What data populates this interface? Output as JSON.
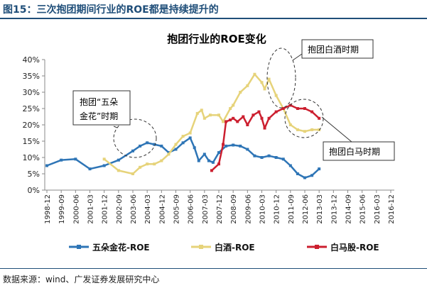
{
  "figure_title": "图15：三次抱团期间行业的ROE都是持续提升的",
  "source_note": "数据来源：wind、广发证券发展研究中心",
  "chart_data": {
    "type": "line",
    "title": "抱团行业的ROE变化",
    "ylim": [
      0,
      40
    ],
    "yticks": [
      "0%",
      "5%",
      "10%",
      "15%",
      "20%",
      "25%",
      "30%",
      "35%",
      "40%"
    ],
    "categories": [
      "1998-12",
      "1999-09",
      "2000-06",
      "2001-03",
      "2001-12",
      "2002-09",
      "2003-06",
      "2004-03",
      "2004-12",
      "2005-09",
      "2006-06",
      "2007-03",
      "2007-12",
      "2008-09",
      "2009-06",
      "2010-03",
      "2010-12",
      "2011-09",
      "2012-06",
      "2013-03",
      "2013-12",
      "2014-09",
      "2015-06",
      "2016-03",
      "2016-12"
    ],
    "grid": false,
    "legend_position": "bottom",
    "series": [
      {
        "name": "五朵金花-ROE",
        "color": "#2e75b6",
        "points": [
          [
            0,
            7.5
          ],
          [
            1,
            9.2
          ],
          [
            2,
            9.5
          ],
          [
            3,
            6.5
          ],
          [
            4,
            7.5
          ],
          [
            5,
            9.2
          ],
          [
            6,
            12
          ],
          [
            6.5,
            13.5
          ],
          [
            7,
            14.5
          ],
          [
            7.5,
            14
          ],
          [
            8,
            13.5
          ],
          [
            8.5,
            11.5
          ],
          [
            9,
            12.5
          ],
          [
            9.5,
            14.5
          ],
          [
            10,
            16
          ],
          [
            10.3,
            13
          ],
          [
            10.6,
            9
          ],
          [
            11,
            11
          ],
          [
            11.3,
            9
          ],
          [
            11.6,
            8.5
          ],
          [
            12,
            11.5
          ],
          [
            12.5,
            13.5
          ],
          [
            13,
            13.8
          ],
          [
            13.5,
            13.5
          ],
          [
            14,
            12.5
          ],
          [
            14.5,
            10.5
          ],
          [
            15,
            10
          ],
          [
            15.5,
            10.5
          ],
          [
            16,
            10
          ],
          [
            16.5,
            9.5
          ],
          [
            17,
            7.5
          ],
          [
            17.5,
            5
          ],
          [
            18,
            3.8
          ],
          [
            18.5,
            4.5
          ],
          [
            19,
            6.5
          ]
        ]
      },
      {
        "name": "白酒-ROE",
        "color": "#e6d37a",
        "points": [
          [
            4,
            9.5
          ],
          [
            5,
            6
          ],
          [
            6,
            5
          ],
          [
            6.5,
            7
          ],
          [
            7,
            8
          ],
          [
            7.5,
            8
          ],
          [
            8,
            9
          ],
          [
            8.5,
            11
          ],
          [
            9,
            14
          ],
          [
            9.5,
            16.5
          ],
          [
            10,
            17.5
          ],
          [
            10.5,
            23.5
          ],
          [
            10.8,
            24.5
          ],
          [
            11,
            22
          ],
          [
            11.4,
            23
          ],
          [
            12,
            23
          ],
          [
            12.3,
            21
          ],
          [
            12.8,
            25
          ],
          [
            13,
            26
          ],
          [
            13.5,
            30
          ],
          [
            14,
            32
          ],
          [
            14.5,
            35.5
          ],
          [
            15,
            33
          ],
          [
            15.2,
            31
          ],
          [
            15.5,
            34
          ],
          [
            16,
            29
          ],
          [
            16.5,
            25
          ],
          [
            17,
            20
          ],
          [
            17.5,
            18.5
          ],
          [
            18,
            18
          ],
          [
            18.5,
            18.5
          ],
          [
            19,
            18.5
          ]
        ]
      },
      {
        "name": "白马股-ROE",
        "color": "#cc1f2f",
        "points": [
          [
            11.5,
            6
          ],
          [
            12,
            8
          ],
          [
            12.3,
            14
          ],
          [
            12.5,
            21
          ],
          [
            12.8,
            21.5
          ],
          [
            13,
            22
          ],
          [
            13.3,
            21
          ],
          [
            13.7,
            22.5
          ],
          [
            14,
            20
          ],
          [
            14.4,
            23
          ],
          [
            14.8,
            24
          ],
          [
            15,
            22
          ],
          [
            15.2,
            19
          ],
          [
            15.5,
            22
          ],
          [
            16,
            24
          ],
          [
            16.5,
            25
          ],
          [
            17,
            26
          ],
          [
            17.5,
            25
          ],
          [
            18,
            25
          ],
          [
            18.5,
            24
          ],
          [
            19,
            22
          ]
        ]
      }
    ],
    "annotations": [
      "抱团“五朵金花”时期",
      "抱团白酒时期",
      "抱团白马时期"
    ]
  }
}
